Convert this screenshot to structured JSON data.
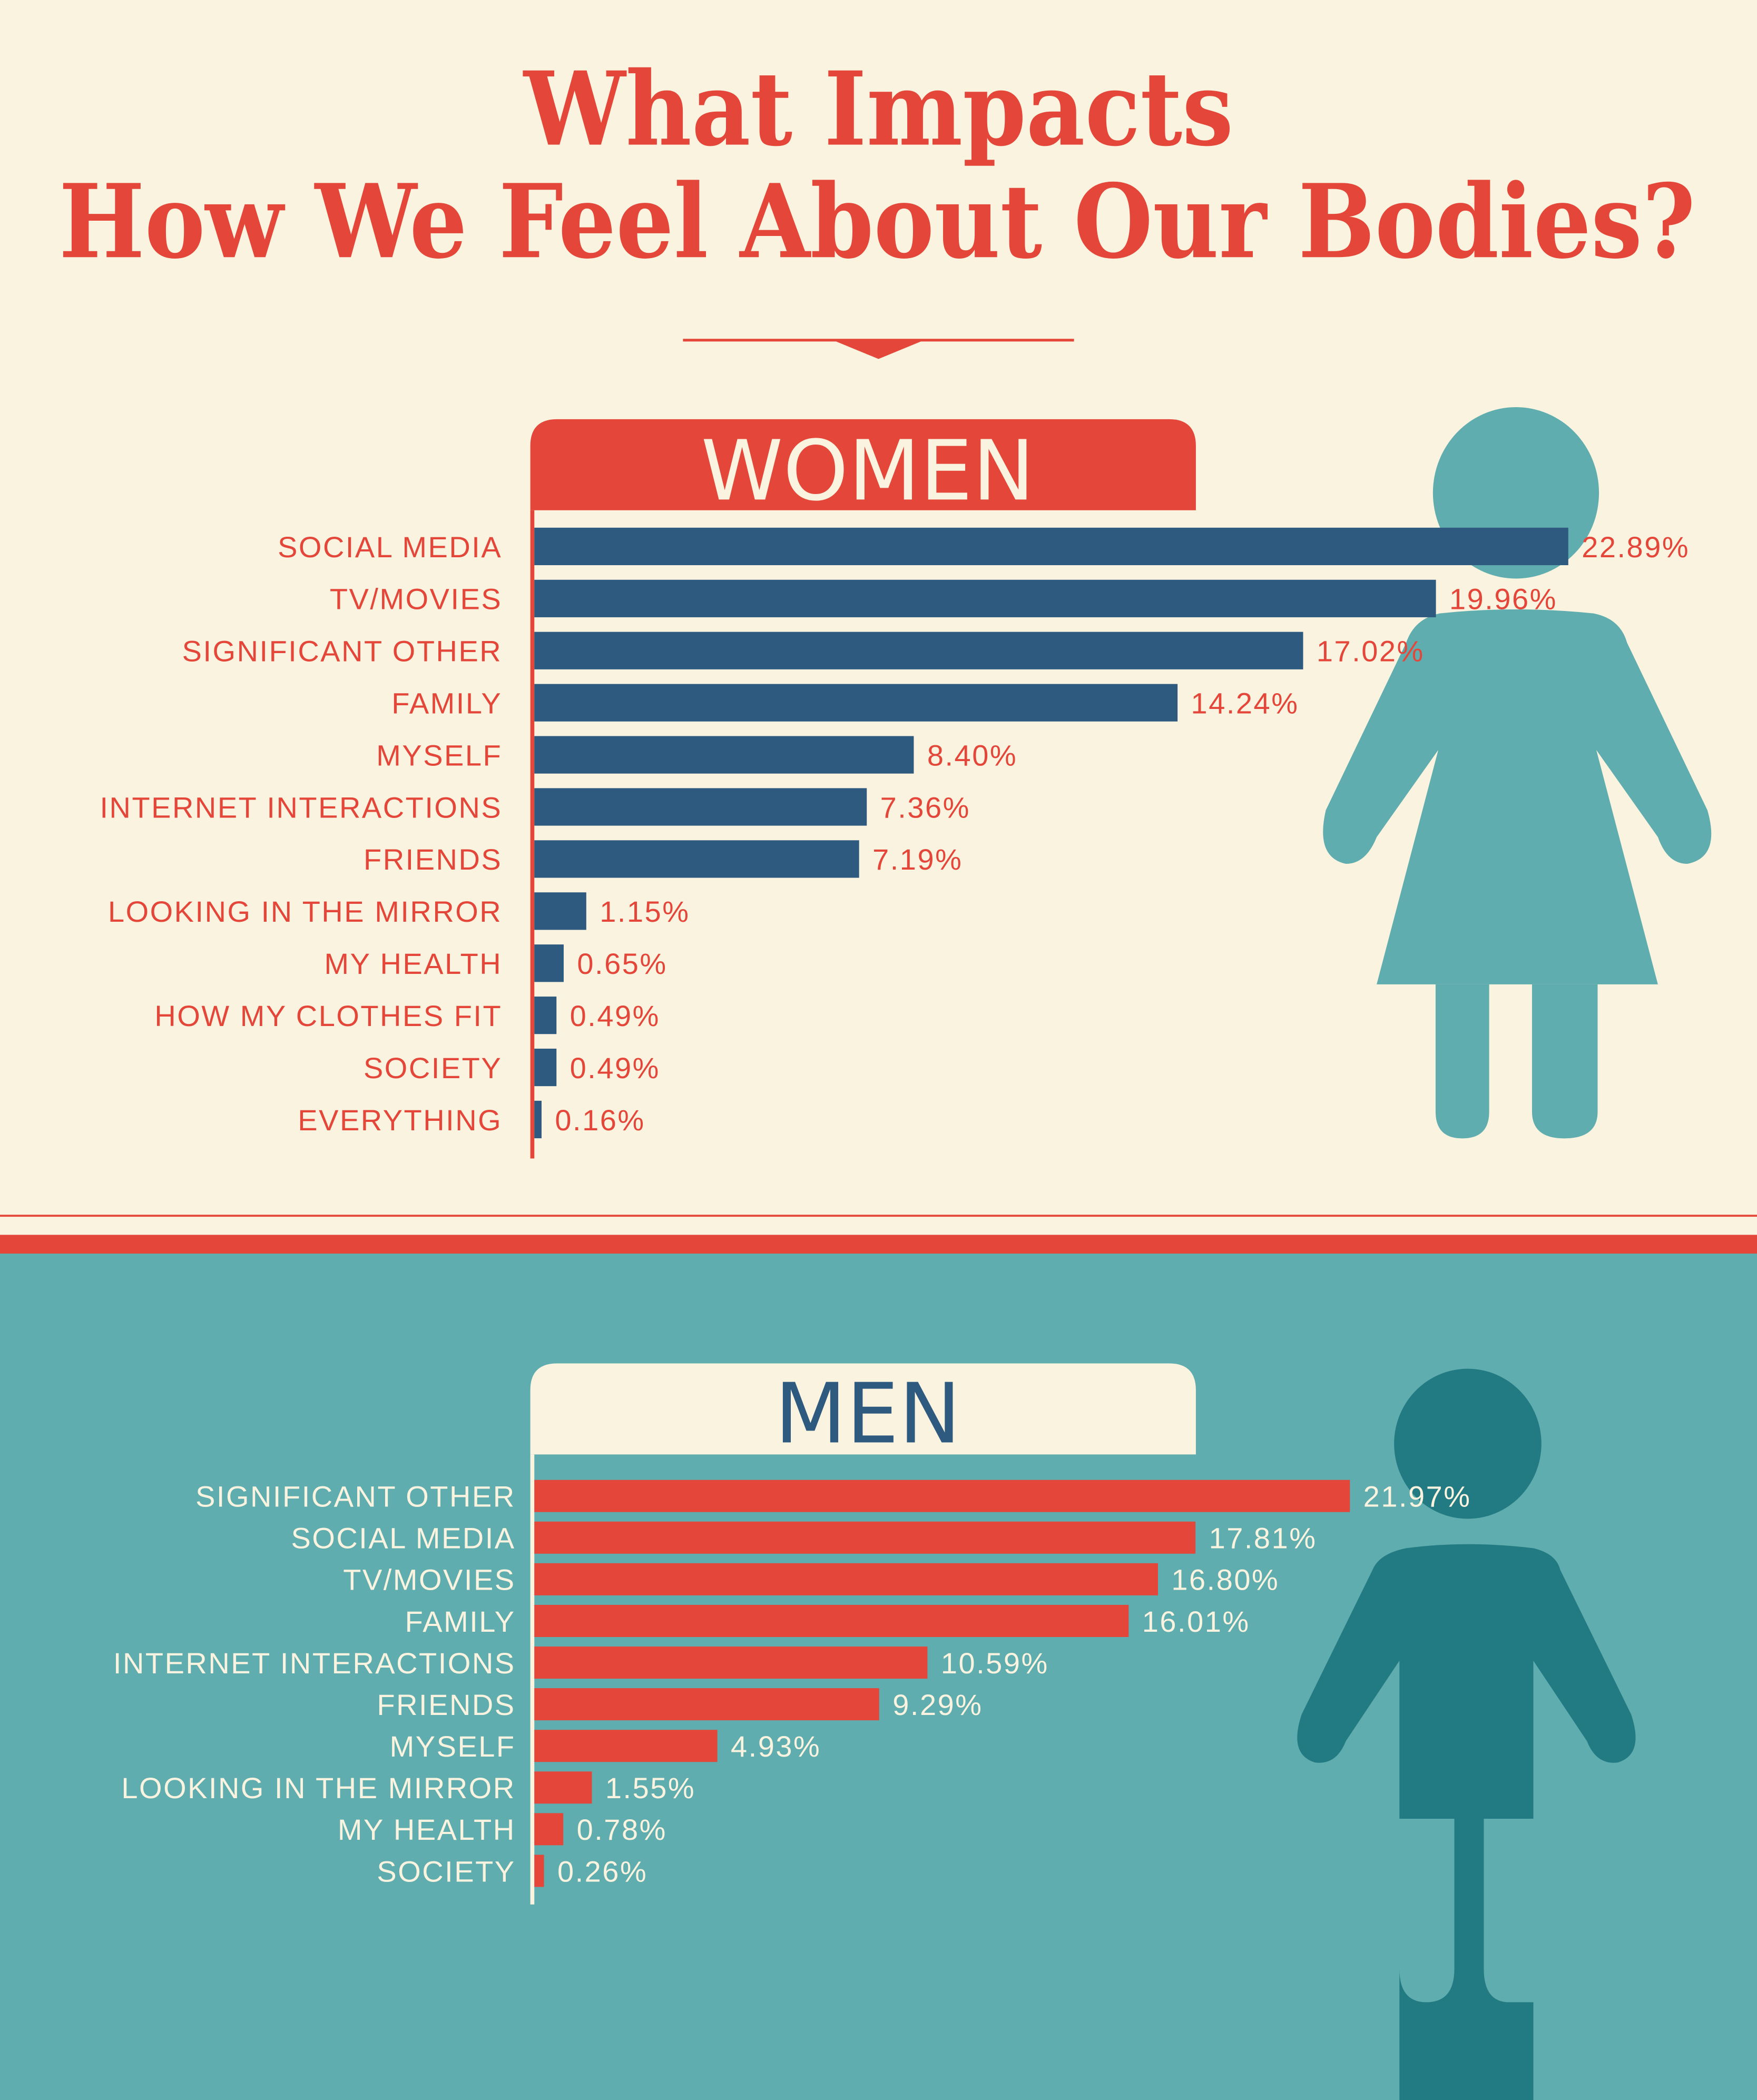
{
  "title": {
    "line1": "What Impacts",
    "line2": "How We Feel About Our Bodies?"
  },
  "colors": {
    "cream": "#FAF3DF",
    "red": "#E4473A",
    "navy": "#2F5A80",
    "teal": "#5FADAE",
    "dark_teal": "#227A82"
  },
  "icons": [
    "woman-figure-icon",
    "man-figure-icon",
    "triangle-down-icon"
  ],
  "chart_data": [
    {
      "type": "bar",
      "orientation": "horizontal",
      "title": "WOMEN",
      "categories": [
        "SOCIAL MEDIA",
        "TV/MOVIES",
        "SIGNIFICANT OTHER",
        "FAMILY",
        "MYSELF",
        "INTERNET INTERACTIONS",
        "FRIENDS",
        "LOOKING IN THE MIRROR",
        "MY HEALTH",
        "HOW MY CLOTHES FIT",
        "SOCIETY",
        "EVERYTHING"
      ],
      "values": [
        22.89,
        19.96,
        17.02,
        14.24,
        8.4,
        7.36,
        7.19,
        1.15,
        0.65,
        0.49,
        0.49,
        0.16
      ],
      "value_labels": [
        "22.89%",
        "19.96%",
        "17.02%",
        "14.24%",
        "8.40%",
        "7.36%",
        "7.19%",
        "1.15%",
        "0.65%",
        "0.49%",
        "0.49%",
        "0.16%"
      ],
      "bar_color": "#2F5A80",
      "grid": false
    },
    {
      "type": "bar",
      "orientation": "horizontal",
      "title": "MEN",
      "categories": [
        "SIGNIFICANT OTHER",
        "SOCIAL MEDIA",
        "TV/MOVIES",
        "FAMILY",
        "INTERNET INTERACTIONS",
        "FRIENDS",
        "MYSELF",
        "LOOKING IN THE MIRROR",
        "MY HEALTH",
        "SOCIETY"
      ],
      "values": [
        21.97,
        17.81,
        16.8,
        16.01,
        10.59,
        9.29,
        4.93,
        1.55,
        0.78,
        0.26
      ],
      "value_labels": [
        "21.97%",
        "17.81%",
        "16.80%",
        "16.01%",
        "10.59%",
        "9.29%",
        "4.93%",
        "1.55%",
        "0.78%",
        "0.26%"
      ],
      "bar_color": "#E4473A",
      "grid": false
    }
  ]
}
